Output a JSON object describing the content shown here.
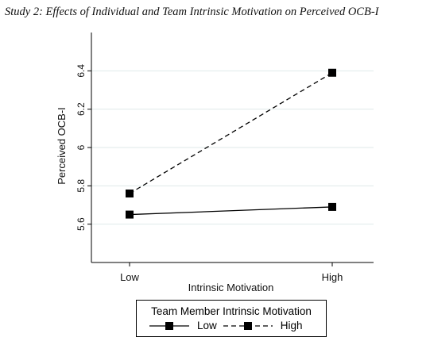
{
  "figure_title": "Study 2: Effects of Individual and Team Intrinsic Motivation on Perceived OCB-I",
  "chart_data": {
    "type": "line",
    "title": "",
    "xlabel": "Intrinsic Motivation",
    "ylabel": "Perceived OCB-I",
    "categories": [
      "Low",
      "High"
    ],
    "ylim": [
      5.4,
      6.6
    ],
    "yticks": [
      5.6,
      5.8,
      6,
      6.2,
      6.4
    ],
    "ytick_labels": [
      "5.6",
      "5.8",
      "6",
      "6.2",
      "6.4"
    ],
    "grid": true,
    "legend_position": "bottom",
    "legend_title": "Team Member Intrinsic Motivation",
    "series": [
      {
        "name": "Low",
        "values": [
          5.65,
          5.69
        ],
        "line_style": "solid",
        "marker": "square",
        "color": "#000000"
      },
      {
        "name": "High",
        "values": [
          5.76,
          6.39
        ],
        "line_style": "dashed",
        "marker": "square",
        "color": "#000000"
      }
    ]
  }
}
